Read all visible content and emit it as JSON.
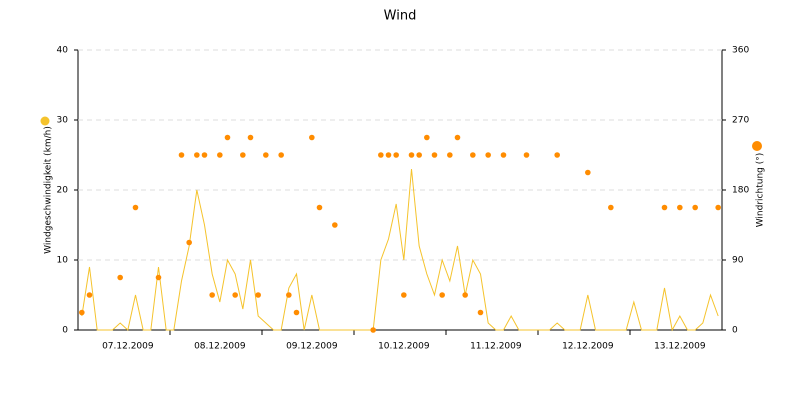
{
  "chart_data": {
    "type": "line-scatter",
    "title": "Wind",
    "categories": [
      null,
      null,
      null,
      null,
      null,
      null,
      "07.12.2009",
      null,
      null,
      null,
      null,
      null,
      null,
      null,
      null,
      null,
      null,
      null,
      "08.12.2009",
      null,
      null,
      null,
      null,
      null,
      null,
      null,
      null,
      null,
      null,
      null,
      "09.12.2009",
      null,
      null,
      null,
      null,
      null,
      null,
      null,
      null,
      null,
      null,
      null,
      "10.12.2009",
      null,
      null,
      null,
      null,
      null,
      null,
      null,
      null,
      null,
      null,
      null,
      "11.12.2009",
      null,
      null,
      null,
      null,
      null,
      null,
      null,
      null,
      null,
      null,
      null,
      "12.12.2009",
      null,
      null,
      null,
      null,
      null,
      null,
      null,
      null,
      null,
      null,
      null,
      "13.12.2009",
      null,
      null,
      null,
      null,
      null
    ],
    "series": [
      {
        "name": "Windgeschwindigkeit (km/h)",
        "color": "#f5c32c",
        "axis": "y",
        "kind": "line",
        "values": [
          2,
          9,
          0,
          0,
          0,
          1,
          0,
          5,
          0,
          0,
          9,
          0,
          0,
          7,
          12,
          20,
          15,
          8,
          4,
          10,
          8,
          3,
          10,
          2,
          1,
          0,
          0,
          6,
          8,
          0,
          5,
          0,
          0,
          0,
          0,
          0,
          0,
          0,
          0,
          10,
          13,
          18,
          10,
          23,
          12,
          8,
          5,
          10,
          7,
          12,
          5,
          10,
          8,
          1,
          0,
          0,
          2,
          0,
          0,
          0,
          0,
          0,
          1,
          0,
          0,
          0,
          5,
          0,
          0,
          0,
          0,
          0,
          4,
          0,
          0,
          0,
          6,
          0,
          2,
          0,
          0,
          1,
          5,
          2
        ]
      },
      {
        "name": "Windrichtung (°)",
        "color": "#ff8c00",
        "axis": "y2",
        "kind": "scatter",
        "values": [
          22.5,
          45,
          null,
          null,
          null,
          67.5,
          null,
          157.5,
          null,
          null,
          67.5,
          null,
          null,
          225,
          112.5,
          225,
          225,
          45,
          225,
          247.5,
          45,
          225,
          247.5,
          45,
          225,
          null,
          225,
          45,
          22.5,
          null,
          247.5,
          157.5,
          null,
          135,
          null,
          null,
          null,
          null,
          0,
          225,
          225,
          225,
          45,
          225,
          225,
          247.5,
          225,
          45,
          225,
          247.5,
          45,
          225,
          22.5,
          225,
          null,
          225,
          null,
          null,
          225,
          null,
          null,
          null,
          225,
          null,
          null,
          null,
          202.5,
          null,
          null,
          157.5,
          null,
          null,
          null,
          null,
          null,
          null,
          157.5,
          null,
          157.5,
          null,
          157.5,
          null,
          null,
          157.5
        ]
      }
    ],
    "ylim": [
      0,
      40
    ],
    "yticks": [
      0,
      10,
      20,
      30,
      40
    ],
    "y2lim": [
      0,
      360
    ],
    "y2ticks": [
      0,
      90,
      180,
      270,
      360
    ],
    "grid": true
  }
}
